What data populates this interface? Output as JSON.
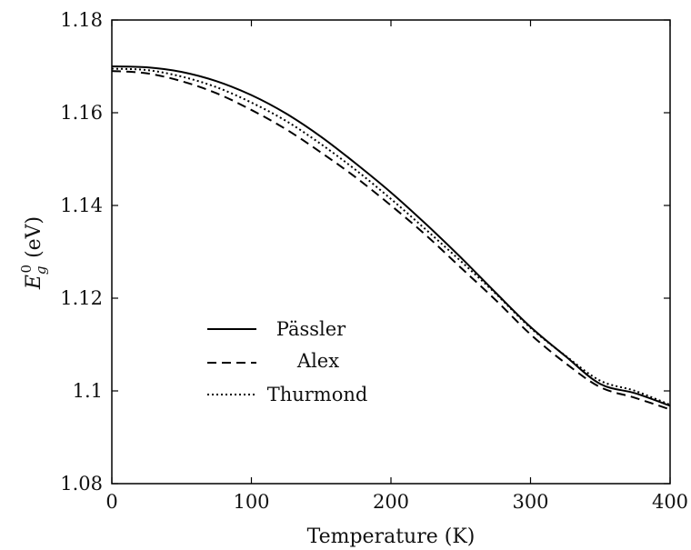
{
  "chart_data": {
    "type": "line",
    "title": "",
    "xlabel": "Temperature (K)",
    "ylabel": {
      "base": "E",
      "sub": "g",
      "sup": "0",
      "unit": " (eV)"
    },
    "xlim": [
      0,
      400
    ],
    "ylim": [
      1.08,
      1.18
    ],
    "xticks": [
      0,
      100,
      200,
      300,
      400
    ],
    "xtick_labels": [
      "0",
      "100",
      "200",
      "300",
      "400"
    ],
    "yticks": [
      1.08,
      1.1,
      1.12,
      1.14,
      1.16,
      1.18
    ],
    "ytick_labels": [
      "1.08",
      "1.1",
      "1.12",
      "1.14",
      "1.16",
      "1.18"
    ],
    "grid": false,
    "legend_position": "lower-left",
    "x": [
      0,
      25,
      50,
      75,
      100,
      125,
      150,
      175,
      200,
      225,
      250,
      275,
      300,
      325,
      350,
      375,
      400
    ],
    "series": [
      {
        "name": "Pässler",
        "style": "solid",
        "values": [
          1.17,
          1.1698,
          1.1688,
          1.1668,
          1.1638,
          1.1598,
          1.1548,
          1.149,
          1.1428,
          1.136,
          1.1288,
          1.1212,
          1.1138,
          1.1075,
          1.1015,
          1.0995,
          1.0968
        ]
      },
      {
        "name": "Alex",
        "style": "dashed",
        "values": [
          1.169,
          1.1685,
          1.1668,
          1.1642,
          1.1606,
          1.1564,
          1.1514,
          1.146,
          1.14,
          1.1336,
          1.1266,
          1.1196,
          1.1122,
          1.106,
          1.1008,
          1.0985,
          1.096
        ]
      },
      {
        "name": "Thurmond",
        "style": "dotted",
        "values": [
          1.1695,
          1.1692,
          1.1678,
          1.1655,
          1.1622,
          1.1582,
          1.1532,
          1.1476,
          1.1414,
          1.1348,
          1.128,
          1.121,
          1.1136,
          1.1076,
          1.1022,
          1.1,
          1.097
        ]
      }
    ]
  }
}
